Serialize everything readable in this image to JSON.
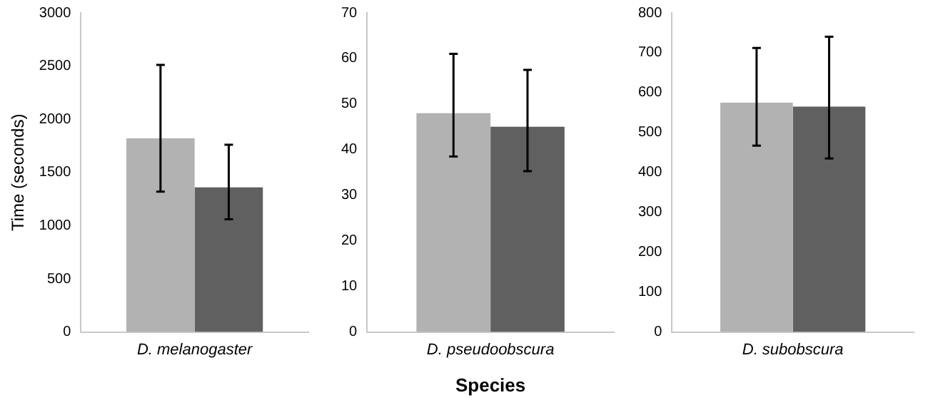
{
  "chart_data": [
    {
      "type": "bar",
      "ylabel": "Time (seconds)",
      "categories": [
        "D. melanogaster"
      ],
      "ylim": [
        0,
        3000
      ],
      "yticks": [
        0,
        500,
        1000,
        1500,
        2000,
        2500,
        3000
      ],
      "series": [
        {
          "color": "#b2b2b2",
          "values": [
            1820
          ],
          "errors": [
            [
              1320,
              2510
            ]
          ]
        },
        {
          "color": "#606060",
          "values": [
            1360
          ],
          "errors": [
            [
              1060,
              1760
            ]
          ]
        }
      ]
    },
    {
      "type": "bar",
      "xlabel": "Species",
      "categories": [
        "D. pseudoobscura"
      ],
      "ylim": [
        0,
        70
      ],
      "yticks": [
        0,
        10,
        20,
        30,
        40,
        50,
        60,
        70
      ],
      "series": [
        {
          "color": "#b2b2b2",
          "values": [
            48
          ],
          "errors": [
            [
              38.5,
              61
            ]
          ]
        },
        {
          "color": "#606060",
          "values": [
            45
          ],
          "errors": [
            [
              35.3,
              57.5
            ]
          ]
        }
      ]
    },
    {
      "type": "bar",
      "categories": [
        "D. subobscura"
      ],
      "ylim": [
        0,
        800
      ],
      "yticks": [
        0,
        100,
        200,
        300,
        400,
        500,
        600,
        700,
        800
      ],
      "series": [
        {
          "color": "#b2b2b2",
          "values": [
            575
          ],
          "errors": [
            [
              467,
              712
            ]
          ]
        },
        {
          "color": "#606060",
          "values": [
            565
          ],
          "errors": [
            [
              435,
              740
            ]
          ]
        }
      ]
    }
  ]
}
